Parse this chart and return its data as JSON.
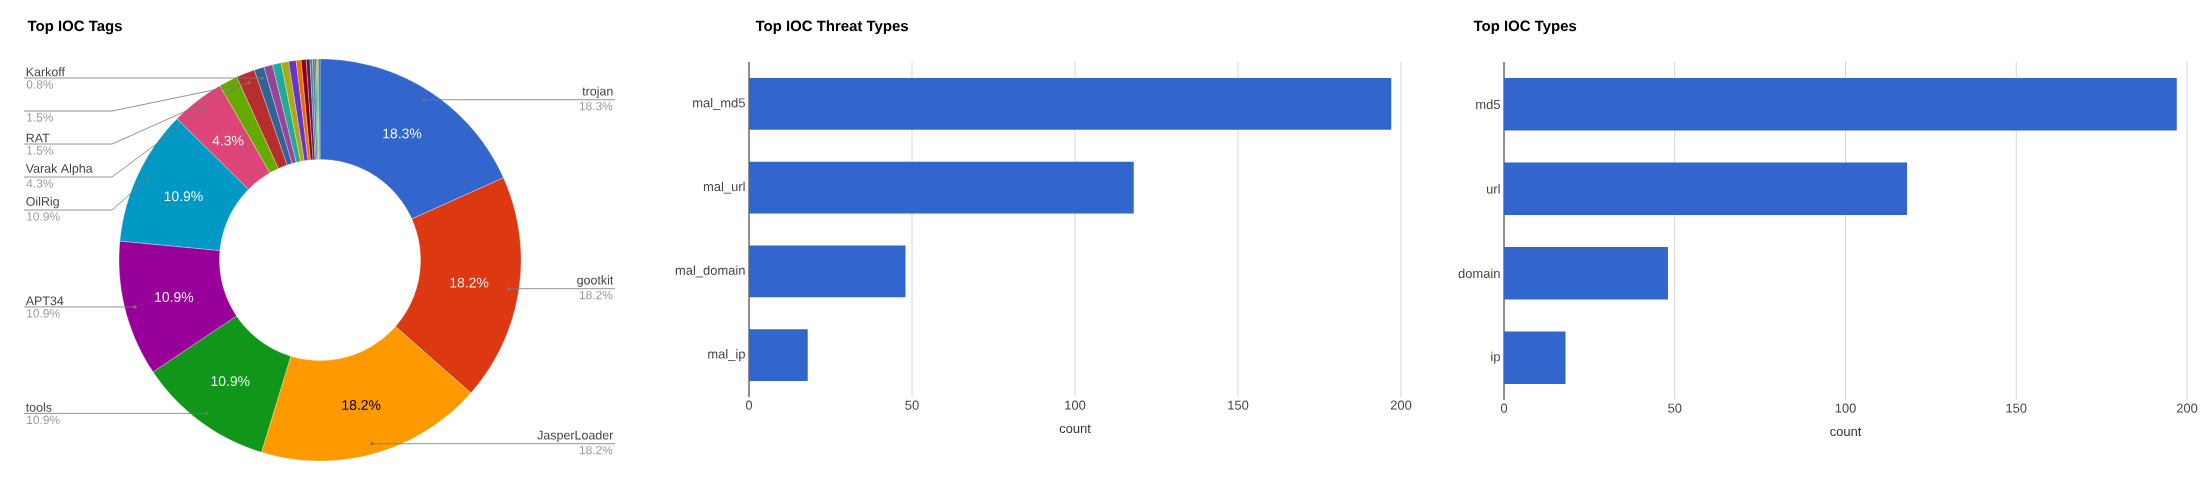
{
  "chart_data": [
    {
      "type": "donut",
      "title": "Top IOC Tags",
      "categories": [
        "trojan",
        "gootkit",
        "JasperLoader",
        "tools",
        "APT34",
        "OilRig",
        "Varak Alpha",
        "RAT",
        null,
        "Karkoff",
        null,
        null,
        null,
        null,
        null,
        null,
        null,
        null,
        null,
        null,
        null,
        null,
        null
      ],
      "values": [
        18.3,
        18.2,
        18.2,
        10.9,
        10.9,
        10.9,
        4.3,
        1.5,
        1.5,
        0.8,
        0.7,
        0.7,
        0.6,
        0.6,
        0.4,
        0.4,
        0.3,
        0.2,
        0.2,
        0.1,
        0.1,
        0.1,
        0.1
      ],
      "value_labels": [
        "18.3%",
        "18.2%",
        "18.2%",
        "10.9%",
        "10.9%",
        "10.9%",
        "4.3%",
        "1.5%",
        "1.5%",
        "0.8%",
        null,
        null,
        null,
        null,
        null,
        null,
        null,
        null,
        null,
        null,
        null,
        null,
        null
      ],
      "colors": [
        "#3366cc",
        "#dc3912",
        "#ff9900",
        "#109618",
        "#990099",
        "#0099c6",
        "#dd4477",
        "#66aa00",
        "#b82e2e",
        "#316395",
        "#994499",
        "#22aa99",
        "#aaaa11",
        "#6633cc",
        "#e67300",
        "#8b0707",
        "#651067",
        "#329262",
        "#5574a6",
        "#3b3eac",
        "#b77322",
        "#16d620",
        "#b91383"
      ]
    },
    {
      "type": "bar",
      "orientation": "horizontal",
      "title": "Top IOC Threat Types",
      "categories": [
        "mal_md5",
        "mal_url",
        "mal_domain",
        "mal_ip"
      ],
      "values": [
        197,
        118,
        48,
        18
      ],
      "color": "#3366cc",
      "xlabel": "count",
      "xlim": [
        0,
        200
      ],
      "xticks": [
        0,
        50,
        100,
        150,
        200
      ],
      "grid": "x"
    },
    {
      "type": "bar",
      "orientation": "horizontal",
      "title": "Top IOC Types",
      "categories": [
        "md5",
        "url",
        "domain",
        "ip"
      ],
      "values": [
        197,
        118,
        48,
        18
      ],
      "color": "#3366cc",
      "xlabel": "count",
      "xlim": [
        0,
        200
      ],
      "xticks": [
        0,
        50,
        100,
        150,
        200
      ],
      "grid": "x"
    }
  ]
}
